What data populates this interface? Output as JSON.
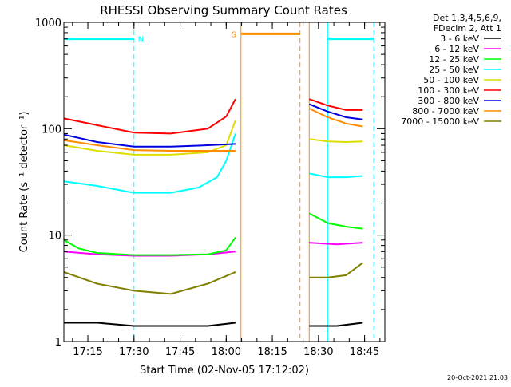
{
  "chart_data": {
    "type": "line",
    "title": "RHESSI Observing Summary Count Rates",
    "xlabel": "Start Time (02-Nov-05 17:12:02)",
    "ylabel": "Count Rate (s⁻¹ detector⁻¹)",
    "ylim": [
      1,
      1000
    ],
    "yscale": "log",
    "xlim": [
      17.12,
      18.86
    ],
    "x_ticks": [
      {
        "value": 17.25,
        "label": "17:15"
      },
      {
        "value": 17.5,
        "label": "17:30"
      },
      {
        "value": 17.75,
        "label": "17:45"
      },
      {
        "value": 18.0,
        "label": "18:00"
      },
      {
        "value": 18.25,
        "label": "18:15"
      },
      {
        "value": 18.5,
        "label": "18:30"
      },
      {
        "value": 18.75,
        "label": "18:45"
      }
    ],
    "y_ticks": [
      {
        "value": 1,
        "label": "1"
      },
      {
        "value": 10,
        "label": "10"
      },
      {
        "value": 100,
        "label": "100"
      },
      {
        "value": 1000,
        "label": "1000"
      }
    ],
    "legend": {
      "position": "right",
      "header": [
        "Det 1,3,4,5,6,9,",
        "FDecim 2, Att 1"
      ]
    },
    "series": [
      {
        "name": "3 - 6 keV",
        "color": "#000000",
        "segments": [
          {
            "x": [
              17.12,
              17.3,
              17.5,
              17.7,
              17.9,
              18.05
            ],
            "y": [
              1.5,
              1.5,
              1.4,
              1.4,
              1.4,
              1.5
            ]
          },
          {
            "x": [
              18.45,
              18.6,
              18.74
            ],
            "y": [
              1.4,
              1.4,
              1.5
            ]
          }
        ]
      },
      {
        "name": "6 - 12 keV",
        "color": "#ff00ff",
        "segments": [
          {
            "x": [
              17.12,
              17.3,
              17.5,
              17.7,
              17.9,
              18.05
            ],
            "y": [
              7.0,
              6.6,
              6.4,
              6.4,
              6.6,
              7.0
            ]
          },
          {
            "x": [
              18.45,
              18.6,
              18.74
            ],
            "y": [
              8.5,
              8.2,
              8.5
            ]
          }
        ]
      },
      {
        "name": "12 - 25 keV",
        "color": "#00ff00",
        "segments": [
          {
            "x": [
              17.12,
              17.2,
              17.3,
              17.5,
              17.7,
              17.9,
              18.0,
              18.05
            ],
            "y": [
              9.0,
              7.5,
              6.8,
              6.5,
              6.5,
              6.6,
              7.2,
              9.5
            ]
          },
          {
            "x": [
              18.45,
              18.55,
              18.65,
              18.74
            ],
            "y": [
              16.0,
              13.0,
              12.0,
              11.5
            ]
          }
        ]
      },
      {
        "name": "25 - 50 keV",
        "color": "#00ffff",
        "segments": [
          {
            "x": [
              17.12,
              17.3,
              17.5,
              17.7,
              17.85,
              17.95,
              18.0,
              18.05
            ],
            "y": [
              32.0,
              29.0,
              25.0,
              25.0,
              28.0,
              35.0,
              50.0,
              90.0
            ]
          },
          {
            "x": [
              18.45,
              18.55,
              18.65,
              18.74
            ],
            "y": [
              38.0,
              35.0,
              35.0,
              36.0
            ]
          }
        ]
      },
      {
        "name": "50 - 100 keV",
        "color": "#dddd00",
        "segments": [
          {
            "x": [
              17.12,
              17.3,
              17.5,
              17.7,
              17.9,
              18.0,
              18.05
            ],
            "y": [
              70.0,
              62.0,
              57.0,
              57.0,
              60.0,
              70.0,
              120.0
            ]
          },
          {
            "x": [
              18.45,
              18.55,
              18.65,
              18.74
            ],
            "y": [
              80.0,
              76.0,
              75.0,
              76.0
            ]
          }
        ]
      },
      {
        "name": "100 - 300 keV",
        "color": "#ff0000",
        "segments": [
          {
            "x": [
              17.12,
              17.3,
              17.5,
              17.7,
              17.9,
              18.0,
              18.05
            ],
            "y": [
              125.0,
              108.0,
              92.0,
              90.0,
              100.0,
              130.0,
              190.0
            ]
          },
          {
            "x": [
              18.45,
              18.55,
              18.65,
              18.74
            ],
            "y": [
              190.0,
              165.0,
              150.0,
              150.0
            ]
          }
        ]
      },
      {
        "name": "300 - 800 keV",
        "color": "#0000dd",
        "segments": [
          {
            "x": [
              17.12,
              17.3,
              17.5,
              17.7,
              17.9,
              18.05
            ],
            "y": [
              88.0,
              75.0,
              68.0,
              68.0,
              70.0,
              72.0
            ]
          },
          {
            "x": [
              18.45,
              18.55,
              18.65,
              18.74
            ],
            "y": [
              170.0,
              145.0,
              128.0,
              122.0
            ]
          }
        ]
      },
      {
        "name": "800 - 7000 keV",
        "color": "#ff8c00",
        "segments": [
          {
            "x": [
              17.12,
              17.3,
              17.5,
              17.7,
              17.9,
              18.05
            ],
            "y": [
              78.0,
              70.0,
              63.0,
              62.0,
              62.0,
              62.0
            ]
          },
          {
            "x": [
              18.45,
              18.55,
              18.65,
              18.74
            ],
            "y": [
              155.0,
              128.0,
              112.0,
              105.0
            ]
          }
        ]
      },
      {
        "name": "7000 - 15000 keV",
        "color": "#808000",
        "segments": [
          {
            "x": [
              17.12,
              17.3,
              17.5,
              17.7,
              17.9,
              18.05
            ],
            "y": [
              4.5,
              3.5,
              3.0,
              2.8,
              3.5,
              4.5
            ]
          },
          {
            "x": [
              18.45,
              18.55,
              18.65,
              18.74
            ],
            "y": [
              4.0,
              4.0,
              4.2,
              5.5
            ]
          }
        ]
      }
    ],
    "annotations": [
      {
        "type": "hline",
        "color": "#00ffff",
        "x": [
          17.12,
          17.5
        ],
        "y": 700,
        "label": "N"
      },
      {
        "type": "hline",
        "color": "#ff8c00",
        "x": [
          18.08,
          18.4
        ],
        "y": 780,
        "label": "S"
      },
      {
        "type": "hline",
        "color": "#00ffff",
        "x": [
          18.55,
          18.8
        ],
        "y": 700,
        "label": ""
      },
      {
        "type": "vline",
        "color": "#00ffff",
        "x": 17.12,
        "style": "solid"
      },
      {
        "type": "vline",
        "color": "#00ffff",
        "x": 17.5,
        "style": "dashed"
      },
      {
        "type": "vline",
        "color": "#ff8c00",
        "x": 18.08,
        "style": "solid"
      },
      {
        "type": "vline",
        "color": "#ff8c00",
        "x": 18.4,
        "style": "dashed"
      },
      {
        "type": "vline",
        "color": "#ff8c00",
        "x": 18.45,
        "style": "solid"
      },
      {
        "type": "vline",
        "color": "#00ffff",
        "x": 18.55,
        "style": "solid"
      },
      {
        "type": "vline",
        "color": "#00ffff",
        "x": 18.8,
        "style": "dashed"
      }
    ]
  },
  "timestamp": "20-Oct-2021 21:03"
}
